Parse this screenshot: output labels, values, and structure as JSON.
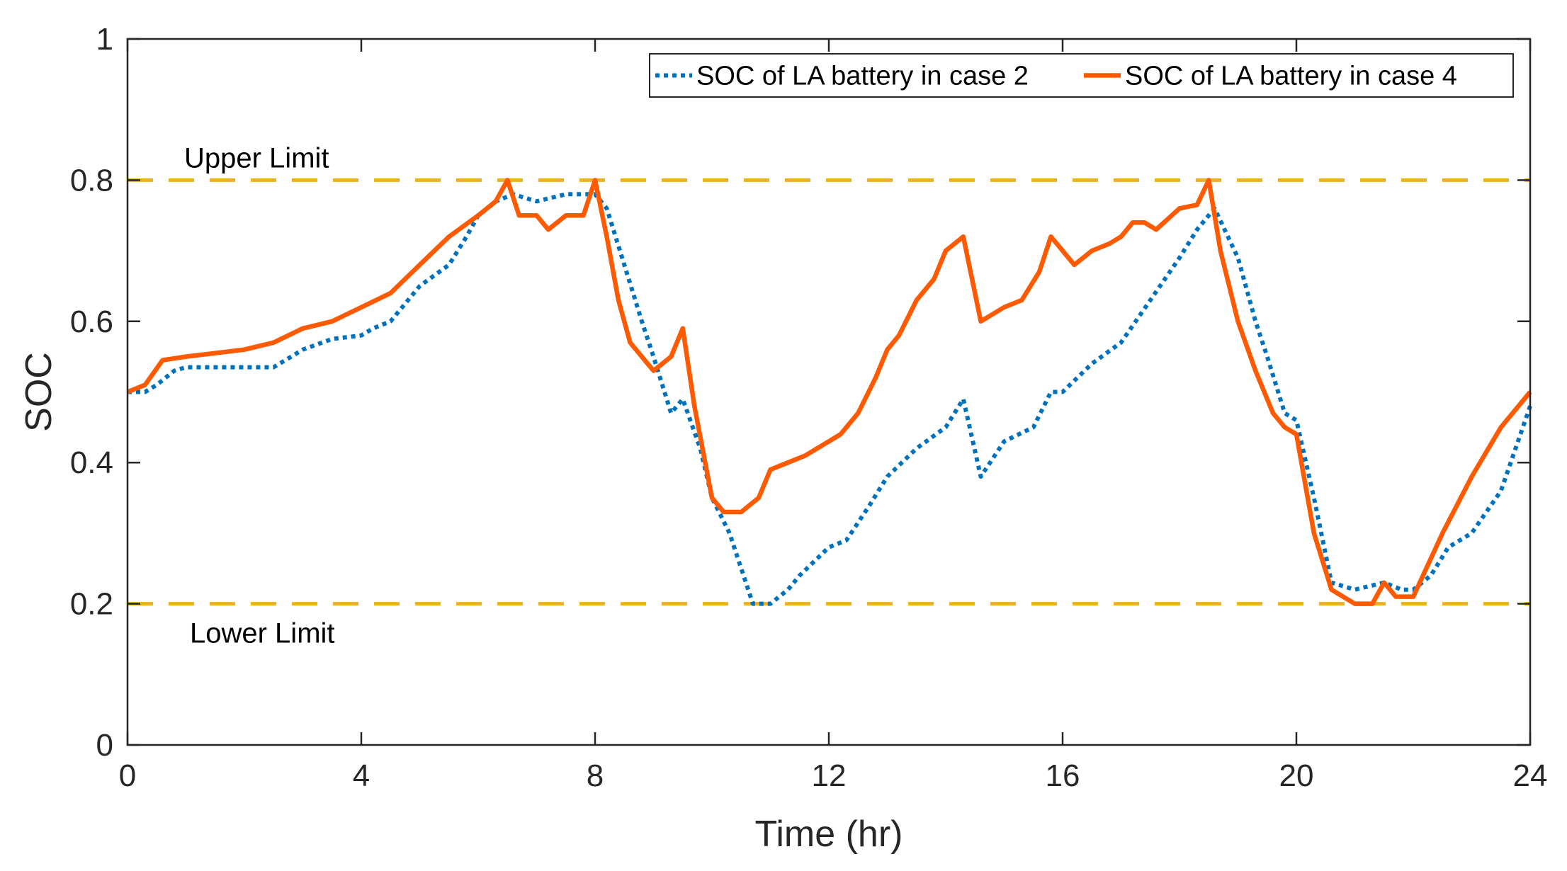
{
  "chart_data": {
    "type": "line",
    "title": "",
    "xlabel": "Time (hr)",
    "ylabel": "SOC",
    "xlim": [
      0,
      24
    ],
    "ylim": [
      0,
      1
    ],
    "xticks": [
      0,
      4,
      8,
      12,
      16,
      20,
      24
    ],
    "xtick_labels": [
      "0",
      "4",
      "8",
      "12",
      "16",
      "20",
      "24"
    ],
    "yticks": [
      0,
      0.2,
      0.4,
      0.6,
      0.8,
      1
    ],
    "ytick_labels": [
      "0",
      "0.2",
      "0.4",
      "0.6",
      "0.8",
      "1"
    ],
    "grid": false,
    "legend_position": "top-right",
    "reference_lines": [
      {
        "name": "Upper Limit",
        "label": "Upper Limit",
        "y": 0.8,
        "color": "#EDB120",
        "style": "dashed"
      },
      {
        "name": "Lower Limit",
        "label": "Lower Limit",
        "y": 0.2,
        "color": "#EDB120",
        "style": "dashed"
      }
    ],
    "series": [
      {
        "name": "SOC of LA battery in case 2",
        "color": "#0072BD",
        "style": "dotted",
        "x": [
          0,
          0.3,
          0.5,
          0.8,
          1.0,
          1.5,
          2.0,
          2.5,
          3.0,
          3.5,
          4.0,
          4.2,
          4.5,
          5.0,
          5.5,
          5.8,
          6.0,
          6.3,
          6.6,
          7.0,
          7.5,
          8.0,
          8.2,
          8.5,
          8.8,
          9.0,
          9.3,
          9.5,
          9.8,
          10.0,
          10.3,
          10.5,
          10.7,
          11.0,
          11.3,
          11.5,
          12.0,
          12.3,
          12.7,
          13.0,
          13.5,
          14.0,
          14.3,
          14.6,
          15.0,
          15.5,
          15.8,
          16.0,
          16.5,
          17.0,
          17.5,
          18.0,
          18.3,
          18.6,
          19.0,
          19.3,
          19.5,
          19.8,
          20.0,
          20.3,
          20.6,
          21.0,
          21.5,
          21.8,
          22.0,
          22.3,
          22.6,
          23.0,
          23.5,
          24.0
        ],
        "y": [
          0.5,
          0.5,
          0.51,
          0.53,
          0.535,
          0.535,
          0.535,
          0.535,
          0.56,
          0.575,
          0.58,
          0.59,
          0.6,
          0.65,
          0.68,
          0.72,
          0.75,
          0.77,
          0.78,
          0.77,
          0.78,
          0.78,
          0.76,
          0.68,
          0.6,
          0.55,
          0.47,
          0.49,
          0.42,
          0.35,
          0.3,
          0.25,
          0.2,
          0.2,
          0.22,
          0.24,
          0.28,
          0.29,
          0.34,
          0.38,
          0.42,
          0.45,
          0.49,
          0.38,
          0.43,
          0.45,
          0.5,
          0.5,
          0.54,
          0.57,
          0.63,
          0.69,
          0.73,
          0.76,
          0.69,
          0.6,
          0.55,
          0.47,
          0.46,
          0.35,
          0.23,
          0.22,
          0.23,
          0.22,
          0.22,
          0.24,
          0.28,
          0.3,
          0.36,
          0.48
        ]
      },
      {
        "name": "SOC of LA battery in case 4",
        "color": "#FF5A00",
        "style": "solid",
        "x": [
          0,
          0.3,
          0.6,
          1.0,
          1.5,
          2.0,
          2.5,
          3.0,
          3.5,
          4.0,
          4.5,
          5.0,
          5.5,
          6.0,
          6.3,
          6.5,
          6.7,
          7.0,
          7.2,
          7.5,
          7.8,
          8.0,
          8.2,
          8.4,
          8.6,
          9.0,
          9.3,
          9.5,
          9.7,
          10.0,
          10.2,
          10.5,
          10.8,
          11.0,
          11.3,
          11.6,
          12.0,
          12.2,
          12.5,
          12.8,
          13.0,
          13.2,
          13.5,
          13.8,
          14.0,
          14.3,
          14.6,
          15.0,
          15.3,
          15.6,
          15.8,
          16.0,
          16.2,
          16.5,
          16.8,
          17.0,
          17.2,
          17.4,
          17.6,
          18.0,
          18.3,
          18.5,
          18.7,
          19.0,
          19.3,
          19.6,
          19.8,
          20.0,
          20.3,
          20.6,
          21.0,
          21.3,
          21.5,
          21.7,
          22.0,
          22.5,
          23.0,
          23.5,
          24.0
        ],
        "y": [
          0.5,
          0.51,
          0.545,
          0.55,
          0.555,
          0.56,
          0.57,
          0.59,
          0.6,
          0.62,
          0.64,
          0.68,
          0.72,
          0.75,
          0.77,
          0.8,
          0.75,
          0.75,
          0.73,
          0.75,
          0.75,
          0.8,
          0.72,
          0.63,
          0.57,
          0.53,
          0.55,
          0.59,
          0.48,
          0.35,
          0.33,
          0.33,
          0.35,
          0.39,
          0.4,
          0.41,
          0.43,
          0.44,
          0.47,
          0.52,
          0.56,
          0.58,
          0.63,
          0.66,
          0.7,
          0.72,
          0.6,
          0.62,
          0.63,
          0.67,
          0.72,
          0.7,
          0.68,
          0.7,
          0.71,
          0.72,
          0.74,
          0.74,
          0.73,
          0.76,
          0.765,
          0.8,
          0.7,
          0.6,
          0.53,
          0.47,
          0.45,
          0.44,
          0.3,
          0.22,
          0.2,
          0.2,
          0.23,
          0.21,
          0.21,
          0.3,
          0.38,
          0.45,
          0.5
        ]
      }
    ]
  }
}
